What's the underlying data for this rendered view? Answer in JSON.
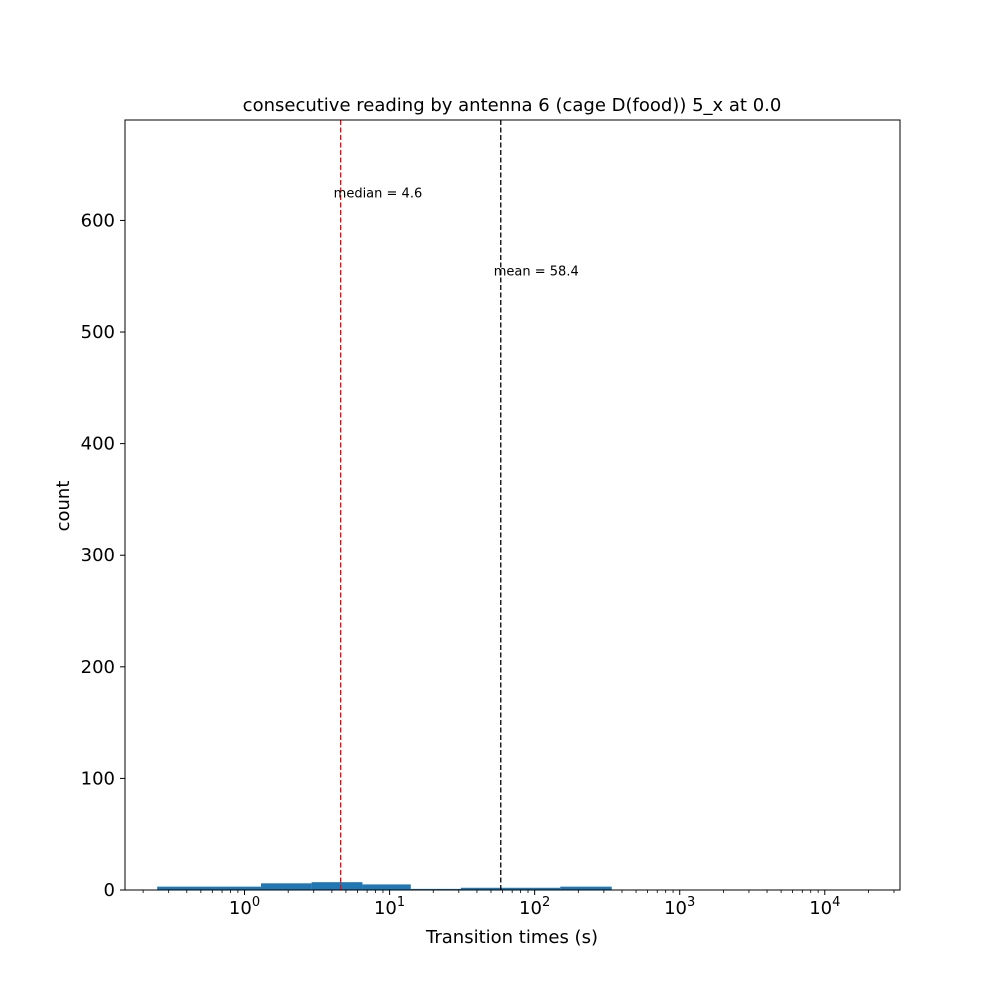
{
  "chart_data": {
    "type": "bar",
    "title": "consecutive reading by antenna 6 (cage D(food)) 5_x at 0.0",
    "xlabel": "Transition times (s)",
    "ylabel": "count",
    "x_scale": "log",
    "xlim": [
      0.15,
      33000
    ],
    "ylim": [
      0,
      690
    ],
    "y_ticks": [
      0,
      100,
      200,
      300,
      400,
      500,
      600
    ],
    "x_ticks": [
      {
        "value": 1,
        "base": "10",
        "exp": "0"
      },
      {
        "value": 10,
        "base": "10",
        "exp": "1"
      },
      {
        "value": 100,
        "base": "10",
        "exp": "2"
      },
      {
        "value": 1000,
        "base": "10",
        "exp": "3"
      },
      {
        "value": 10000,
        "base": "10",
        "exp": "4"
      }
    ],
    "grid": false,
    "bar_color": "#1f77b4",
    "bins": [
      {
        "x0": 0.25,
        "x1": 1.3,
        "count": 3
      },
      {
        "x0": 1.3,
        "x1": 2.9,
        "count": 6
      },
      {
        "x0": 2.9,
        "x1": 6.5,
        "count": 7
      },
      {
        "x0": 6.5,
        "x1": 14,
        "count": 5
      },
      {
        "x0": 14,
        "x1": 31,
        "count": 1
      },
      {
        "x0": 31,
        "x1": 150,
        "count": 2
      },
      {
        "x0": 150,
        "x1": 340,
        "count": 3
      }
    ],
    "reference_lines": [
      {
        "name": "median",
        "value": 4.6,
        "label": "median =  4.6",
        "color": "#ff0000",
        "label_y": 625
      },
      {
        "name": "mean",
        "value": 58.4,
        "label": "mean = 58.4",
        "color": "#000000",
        "label_y": 555
      }
    ]
  }
}
